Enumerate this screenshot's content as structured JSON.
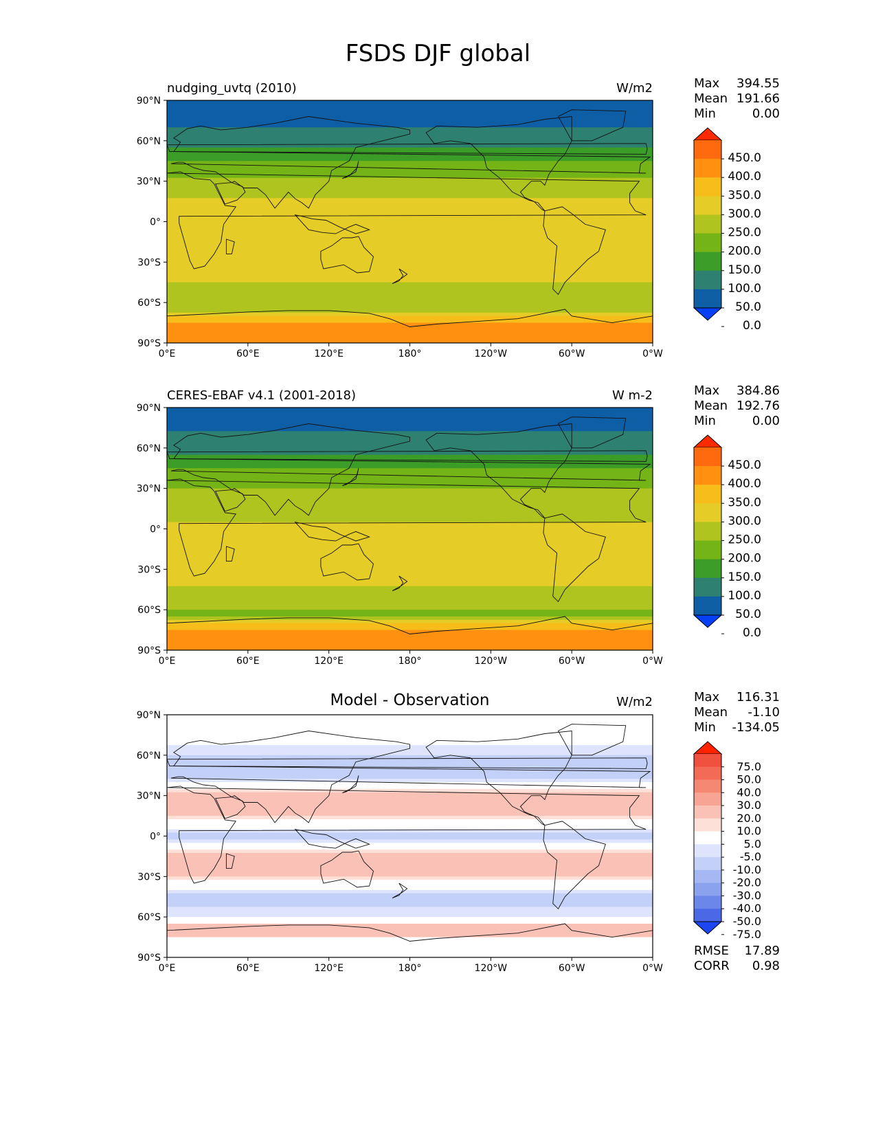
{
  "figure": {
    "title": "FSDS DJF global"
  },
  "panels": [
    {
      "id": "model",
      "title_left": "nudging_uvtq (2010)",
      "title_right": "W/m2",
      "title_center": "",
      "stats": [
        {
          "label": "Max",
          "value": "394.55"
        },
        {
          "label": "Mean",
          "value": "191.66"
        },
        {
          "label": "Min",
          "value": "0.00"
        }
      ],
      "colorbar": {
        "labels": [
          "450.0",
          "400.0",
          "350.0",
          "300.0",
          "250.0",
          "200.0",
          "150.0",
          "100.0",
          "50.0",
          "0.0"
        ],
        "colors": [
          "#ff2a00",
          "#ff6a0e",
          "#ff9010",
          "#f7bd1b",
          "#e6cc26",
          "#afc41e",
          "#75b416",
          "#3c9c28",
          "#2e8070",
          "#0e5ea6",
          "#0540f5"
        ]
      }
    },
    {
      "id": "obs",
      "title_left": "CERES-EBAF v4.1 (2001-2018)",
      "title_right": "W m-2",
      "title_center": "",
      "stats": [
        {
          "label": "Max",
          "value": "384.86"
        },
        {
          "label": "Mean",
          "value": "192.76"
        },
        {
          "label": "Min",
          "value": "0.00"
        }
      ],
      "colorbar": {
        "labels": [
          "450.0",
          "400.0",
          "350.0",
          "300.0",
          "250.0",
          "200.0",
          "150.0",
          "100.0",
          "50.0",
          "0.0"
        ],
        "colors": [
          "#ff2a00",
          "#ff6a0e",
          "#ff9010",
          "#f7bd1b",
          "#e6cc26",
          "#afc41e",
          "#75b416",
          "#3c9c28",
          "#2e8070",
          "#0e5ea6",
          "#0540f5"
        ]
      }
    },
    {
      "id": "diff",
      "title_left": "",
      "title_right": "W/m2",
      "title_center": "Model - Observation",
      "stats": [
        {
          "label": "Max",
          "value": "116.31"
        },
        {
          "label": "Mean",
          "value": "-1.10"
        },
        {
          "label": "Min",
          "value": "-134.05"
        }
      ],
      "stats_bottom": [
        {
          "label": "RMSE",
          "value": "17.89"
        },
        {
          "label": "CORR",
          "value": "0.98"
        }
      ],
      "colorbar": {
        "labels": [
          "75.0",
          "50.0",
          "40.0",
          "30.0",
          "20.0",
          "10.0",
          "5.0",
          "-5.0",
          "-10.0",
          "-20.0",
          "-30.0",
          "-40.0",
          "-50.0",
          "-75.0"
        ],
        "colors": [
          "#ff2200",
          "#f0513f",
          "#f36a57",
          "#f58872",
          "#f8a495",
          "#fac2b6",
          "#fde0d8",
          "#ffffff",
          "#dde4fb",
          "#c3d0f7",
          "#a6b8f3",
          "#8ba2ef",
          "#6c87ea",
          "#4b69e6",
          "#1e45f2"
        ]
      }
    }
  ],
  "axes": {
    "lat_ticks": [
      "90°N",
      "60°N",
      "30°N",
      "0°",
      "30°S",
      "60°S",
      "90°S"
    ],
    "lon_ticks": [
      "0°E",
      "60°E",
      "120°E",
      "180°",
      "120°W",
      "60°W",
      "0°W"
    ]
  },
  "chart_data": [
    {
      "type": "heatmap",
      "title": "nudging_uvtq (2010)",
      "units": "W/m2",
      "xlabel": "",
      "ylabel": "",
      "x_ticks": [
        "0°E",
        "60°E",
        "120°E",
        "180°",
        "120°W",
        "60°W",
        "0°W"
      ],
      "y_ticks": [
        "90°N",
        "60°N",
        "30°N",
        "0°",
        "30°S",
        "60°S",
        "90°S"
      ],
      "zonal_profile": {
        "lat": [
          90,
          85,
          75,
          65,
          55,
          45,
          35,
          25,
          15,
          5,
          -5,
          -15,
          -25,
          -35,
          -45,
          -55,
          -65,
          -70,
          -75,
          -85,
          -90
        ],
        "value": [
          10,
          25,
          45,
          55,
          95,
          150,
          190,
          230,
          255,
          250,
          250,
          270,
          285,
          285,
          250,
          210,
          200,
          300,
          360,
          360,
          360
        ]
      },
      "contour_levels": [
        0,
        50,
        100,
        150,
        200,
        250,
        300,
        350,
        400,
        450
      ],
      "extend": "both",
      "max": 394.55,
      "mean": 191.66,
      "min": 0.0
    },
    {
      "type": "heatmap",
      "title": "CERES-EBAF v4.1 (2001-2018)",
      "units": "W m-2",
      "xlabel": "",
      "ylabel": "",
      "x_ticks": [
        "0°E",
        "60°E",
        "120°E",
        "180°",
        "120°W",
        "60°W",
        "0°W"
      ],
      "y_ticks": [
        "90°N",
        "60°N",
        "30°N",
        "0°",
        "30°S",
        "60°S",
        "90°S"
      ],
      "zonal_profile": {
        "lat": [
          90,
          85,
          75,
          65,
          55,
          45,
          35,
          25,
          15,
          5,
          -5,
          -15,
          -25,
          -35,
          -45,
          -55,
          -65,
          -70,
          -75,
          -85,
          -90
        ],
        "value": [
          10,
          25,
          45,
          60,
          100,
          150,
          185,
          220,
          245,
          250,
          255,
          275,
          285,
          280,
          245,
          205,
          195,
          300,
          360,
          360,
          360
        ]
      },
      "contour_levels": [
        0,
        50,
        100,
        150,
        200,
        250,
        300,
        350,
        400,
        450
      ],
      "extend": "both",
      "max": 384.86,
      "mean": 192.76,
      "min": 0.0
    },
    {
      "type": "heatmap",
      "title": "Model - Observation",
      "units": "W/m2",
      "xlabel": "",
      "ylabel": "",
      "x_ticks": [
        "0°E",
        "60°E",
        "120°E",
        "180°",
        "120°W",
        "60°W",
        "0°W"
      ],
      "y_ticks": [
        "90°N",
        "60°N",
        "30°N",
        "0°",
        "30°S",
        "60°S",
        "90°S"
      ],
      "zonal_profile": {
        "lat": [
          90,
          75,
          60,
          45,
          30,
          15,
          0,
          -15,
          -30,
          -45,
          -60,
          -70,
          -80,
          -90
        ],
        "value": [
          0,
          0,
          -10,
          -15,
          15,
          10,
          -15,
          15,
          10,
          -15,
          -5,
          20,
          -5,
          0
        ]
      },
      "contour_levels": [
        -75,
        -50,
        -40,
        -30,
        -20,
        -10,
        -5,
        5,
        10,
        20,
        30,
        40,
        50,
        75
      ],
      "extend": "both",
      "max": 116.31,
      "mean": -1.1,
      "min": -134.05,
      "rmse": 17.89,
      "corr": 0.98
    }
  ]
}
